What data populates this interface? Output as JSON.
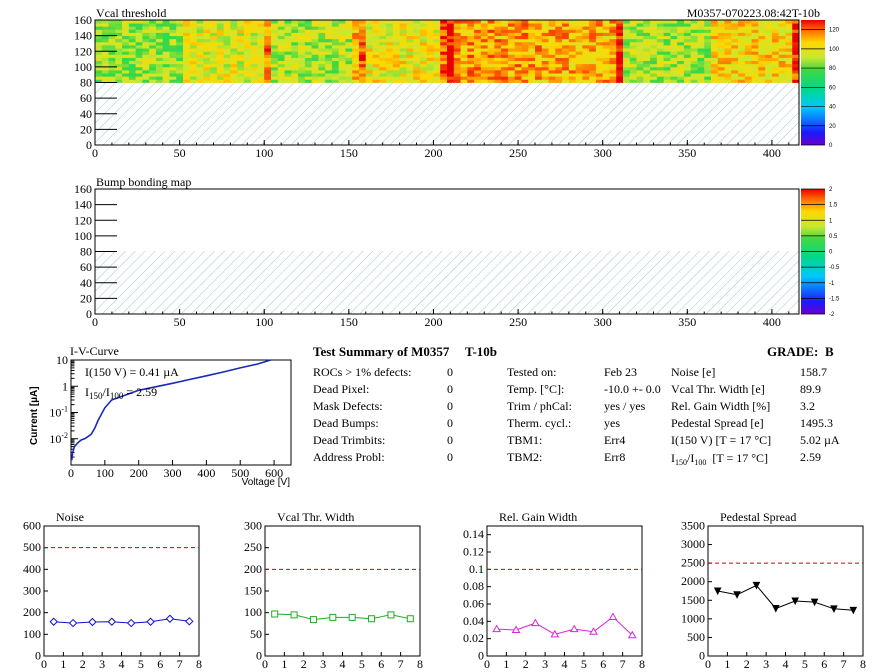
{
  "header": {
    "module_id": "M0357-070223.08:42T-10b"
  },
  "vcal_map": {
    "title": "Vcal threshold",
    "xlim": [
      0,
      416
    ],
    "ylim": [
      0,
      160
    ],
    "x_ticks": [
      "0",
      "50",
      "100",
      "150",
      "200",
      "250",
      "300",
      "350",
      "400"
    ],
    "y_ticks": [
      "0",
      "20",
      "40",
      "60",
      "80",
      "100",
      "120",
      "140",
      "160"
    ],
    "color_ticks": [
      "0",
      "20",
      "40",
      "60",
      "80",
      "100",
      "120"
    ],
    "zlim": [
      0,
      130
    ],
    "rocs": [
      {
        "x0": 0,
        "x1": 52,
        "mean": 86,
        "dark_edge": "none"
      },
      {
        "x0": 52,
        "x1": 104,
        "mean": 97,
        "dark_edge": "right"
      },
      {
        "x0": 104,
        "x1": 156,
        "mean": 90,
        "dark_edge": "right"
      },
      {
        "x0": 156,
        "x1": 208,
        "mean": 100,
        "dark_edge": "both"
      },
      {
        "x0": 208,
        "x1": 260,
        "mean": 112,
        "dark_edge": "left"
      },
      {
        "x0": 260,
        "x1": 312,
        "mean": 110,
        "dark_edge": "right"
      },
      {
        "x0": 312,
        "x1": 364,
        "mean": 88,
        "dark_edge": "none"
      },
      {
        "x0": 364,
        "x1": 416,
        "mean": 104,
        "dark_edge": "right"
      }
    ],
    "filled_rows": [
      80,
      160
    ]
  },
  "bump_map": {
    "title": "Bump bonding map",
    "xlim": [
      0,
      416
    ],
    "ylim": [
      0,
      160
    ],
    "x_ticks": [
      "0",
      "50",
      "100",
      "150",
      "200",
      "250",
      "300",
      "350",
      "400"
    ],
    "y_ticks": [
      "0",
      "20",
      "40",
      "60",
      "80",
      "100",
      "120",
      "140",
      "160"
    ],
    "color_ticks": [
      "-2",
      "-1.5",
      "-1",
      "-0.5",
      "0",
      "0.5",
      "1",
      "1.5",
      "2"
    ],
    "zlim": [
      -2,
      2
    ]
  },
  "iv_curve": {
    "title": "I-V-Curve",
    "xlabel": "Voltage [V]",
    "ylabel": "Current [µA]",
    "x_ticks": [
      "0",
      "100",
      "200",
      "300",
      "400",
      "500",
      "600"
    ],
    "xlim": [
      0,
      650
    ],
    "ylim_log10": [
      -3,
      1
    ],
    "annotation_1": "I(150 V) = 0.41 µA",
    "annotation_2": "I",
    "annotation_2_sub1": "150",
    "annotation_2_mid": "/I",
    "annotation_2_sub2": "100",
    "annotation_2_val": " = 2.59",
    "chart_data": {
      "type": "line",
      "x": [
        2,
        5,
        10,
        20,
        30,
        40,
        50,
        60,
        70,
        80,
        100,
        120,
        150,
        200,
        250,
        300,
        350,
        400,
        450,
        500,
        550,
        590
      ],
      "y": [
        0.0015,
        0.003,
        0.005,
        0.007,
        0.009,
        0.01,
        0.012,
        0.015,
        0.025,
        0.05,
        0.15,
        0.3,
        0.41,
        0.7,
        0.95,
        1.3,
        1.8,
        2.5,
        3.5,
        5.0,
        7.0,
        10.0
      ]
    }
  },
  "summary": {
    "title": "Test Summary of M0357",
    "tag": "T-10b",
    "grade_label": "GRADE:",
    "grade": "B",
    "left_labels": [
      "ROCs > 1% defects:",
      "Dead Pixel:",
      "Mask Defects:",
      "Dead Bumps:",
      "Dead Trimbits:",
      "Address Probl:"
    ],
    "left_values": [
      "0",
      "0",
      "0",
      "0",
      "0",
      "0"
    ],
    "mid_labels": [
      "Tested on:",
      "Temp. [°C]:",
      "Trim / phCal:",
      "Therm. cycl.:",
      "TBM1:",
      "TBM2:"
    ],
    "mid_values": [
      "Feb 23",
      "-10.0 +- 0.0",
      "yes / yes",
      "yes",
      "Err4",
      "Err8"
    ],
    "right_labels": [
      "Noise [e]",
      "Vcal Thr. Width [e]",
      "Rel. Gain Width [%]",
      "Pedestal Spread [e]",
      "I(150 V) [T = 17 °C]"
    ],
    "right_values": [
      "158.7",
      "89.9",
      "3.2",
      "1495.3",
      "5.02 µA",
      "2.59"
    ],
    "ratio_label_a": "I",
    "ratio_label_sub1": "150",
    "ratio_label_b": "/I",
    "ratio_label_sub2": "100",
    "ratio_label_c": "[T = 17 °C]"
  },
  "small_plots": [
    {
      "title": "Noise",
      "color": "#1010cc",
      "marker": "diamond",
      "ylim": [
        0,
        600
      ],
      "y_ticks": [
        "0",
        "100",
        "200",
        "300",
        "400",
        "500",
        "600"
      ],
      "threshold": 500,
      "chart_data": {
        "type": "line",
        "x": [
          0.5,
          1.5,
          2.5,
          3.5,
          4.5,
          5.5,
          6.5,
          7.5
        ],
        "y": [
          158,
          152,
          157,
          158,
          152,
          158,
          172,
          160
        ]
      }
    },
    {
      "title": "Vcal Thr. Width",
      "color": "#22aa22",
      "marker": "square",
      "ylim": [
        0,
        300
      ],
      "y_ticks": [
        "0",
        "50",
        "100",
        "150",
        "200",
        "250",
        "300"
      ],
      "threshold": 200,
      "chart_data": {
        "type": "line",
        "x": [
          0.5,
          1.5,
          2.5,
          3.5,
          4.5,
          5.5,
          6.5,
          7.5
        ],
        "y": [
          97,
          95,
          84,
          89,
          89,
          86,
          95,
          86
        ]
      }
    },
    {
      "title": "Rel. Gain Width",
      "color": "#dd22dd",
      "marker": "triangle",
      "ylim": [
        0,
        0.15
      ],
      "y_ticks": [
        "0",
        "0.02",
        "0.04",
        "0.06",
        "0.08",
        "0.1",
        "0.12",
        "0.14"
      ],
      "threshold": 0.1,
      "chart_data": {
        "type": "line",
        "x": [
          0.5,
          1.5,
          2.5,
          3.5,
          4.5,
          5.5,
          6.5,
          7.5
        ],
        "y": [
          0.031,
          0.03,
          0.038,
          0.025,
          0.031,
          0.028,
          0.045,
          0.024
        ]
      }
    },
    {
      "title": "Pedestal Spread",
      "color": "#000000",
      "marker": "downtriangle",
      "ylim": [
        0,
        3500
      ],
      "y_ticks": [
        "0",
        "500",
        "1000",
        "1500",
        "2000",
        "2500",
        "3000",
        "3500"
      ],
      "threshold": 2500,
      "chart_data": {
        "type": "line",
        "x": [
          0.5,
          1.5,
          2.5,
          3.5,
          4.5,
          5.5,
          6.5,
          7.5
        ],
        "y": [
          1750,
          1650,
          1900,
          1280,
          1480,
          1450,
          1270,
          1230
        ]
      }
    }
  ],
  "small_x_ticks": [
    "0",
    "1",
    "2",
    "3",
    "4",
    "5",
    "6",
    "7",
    "8"
  ],
  "colors": {
    "hatch": "#9ec8cc",
    "threshold_line": "#cc0000",
    "iv_line": "#1a2ab8"
  }
}
